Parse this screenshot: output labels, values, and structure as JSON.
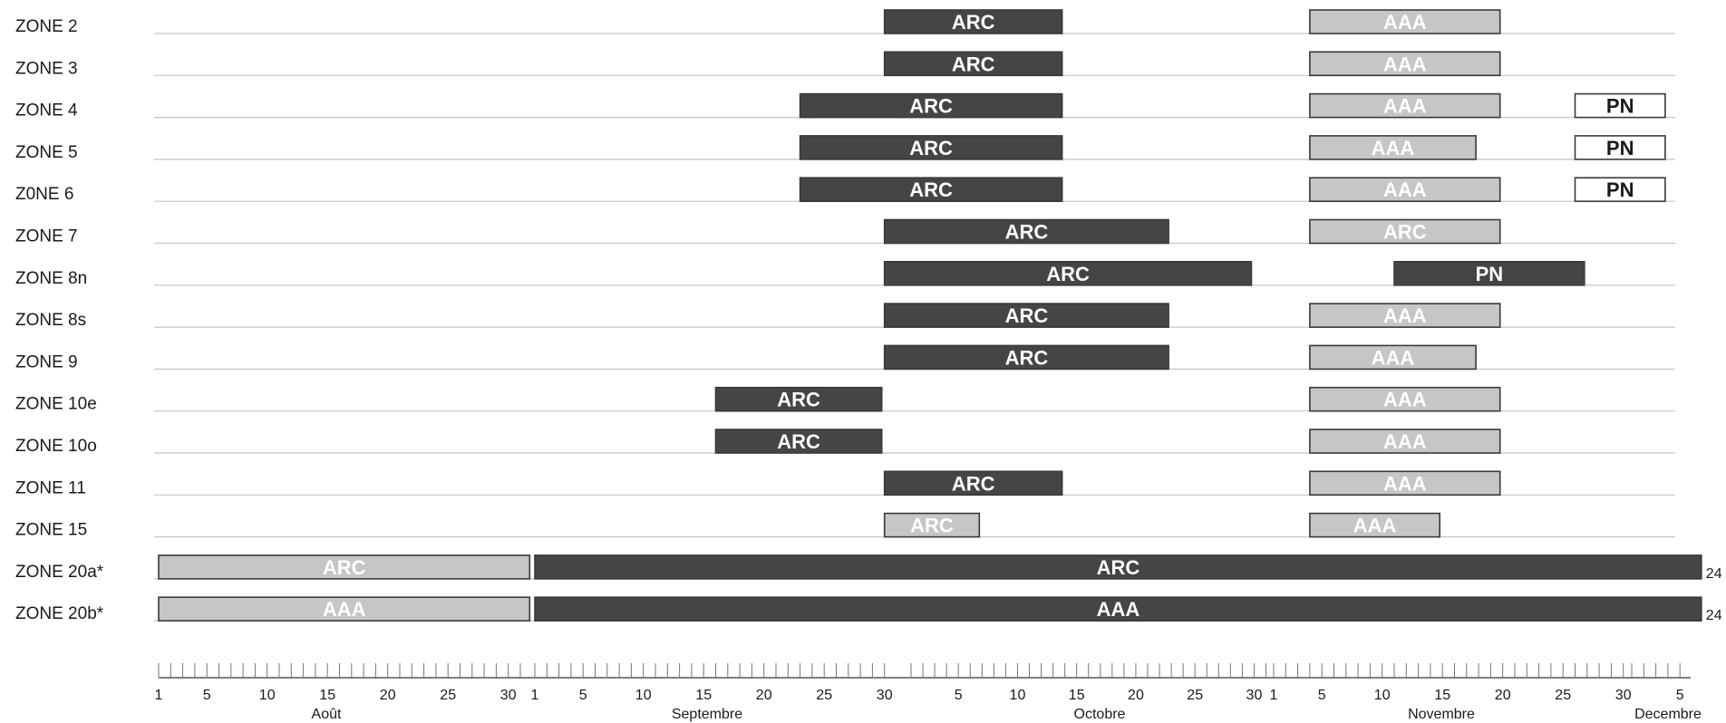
{
  "colors": {
    "dark": "#464446",
    "light": "#c6c6c6",
    "white": "#ffffff",
    "border": "#3a3a3a",
    "row_line": "#c4c4c4",
    "text_dark": "#1a1a1a",
    "text_light": "#ffffff"
  },
  "chart_data": {
    "type": "gantt",
    "rows": [
      "ZONE 2",
      "ZONE 3",
      "ZONE 4",
      "ZONE 5",
      "Z0NE 6",
      "ZONE 7",
      "ZONE 8n",
      "ZONE 8s",
      "ZONE 9",
      "ZONE 10e",
      "ZONE 10o",
      "ZONE 11",
      "ZONE 15",
      "ZONE 20a*",
      "ZONE 20b*"
    ],
    "months": [
      {
        "name": "Août",
        "start": "08-01",
        "ticks": [
          {
            "day": 1,
            "label": "1"
          },
          {
            "day": 5,
            "label": "5"
          },
          {
            "day": 10,
            "label": "10"
          },
          {
            "day": 15,
            "label": "15"
          },
          {
            "day": 20,
            "label": "20"
          },
          {
            "day": 25,
            "label": "25"
          },
          {
            "day": 30,
            "label": "30"
          }
        ]
      },
      {
        "name": "Septembre",
        "start": "09-01",
        "ticks": [
          {
            "day": 1,
            "label": "1"
          },
          {
            "day": 5,
            "label": "5"
          },
          {
            "day": 10,
            "label": "10"
          },
          {
            "day": 15,
            "label": "15"
          },
          {
            "day": 20,
            "label": "20"
          },
          {
            "day": 25,
            "label": "25"
          },
          {
            "day": 30,
            "label": "30"
          }
        ]
      },
      {
        "name": "Octobre",
        "start": "10-01",
        "ticks": [
          {
            "day": 5,
            "label": "5"
          },
          {
            "day": 10,
            "label": "10"
          },
          {
            "day": 15,
            "label": "15"
          },
          {
            "day": 20,
            "label": "20"
          },
          {
            "day": 25,
            "label": "25"
          },
          {
            "day": 30,
            "label": "30"
          }
        ]
      },
      {
        "name": "Novembre",
        "start": "11-01",
        "ticks": [
          {
            "day": 1,
            "label": "1"
          },
          {
            "day": 5,
            "label": "5"
          },
          {
            "day": 10,
            "label": "10"
          },
          {
            "day": 15,
            "label": "15"
          },
          {
            "day": 20,
            "label": "20"
          },
          {
            "day": 25,
            "label": "25"
          },
          {
            "day": 30,
            "label": "30"
          }
        ]
      },
      {
        "name": "Decembre",
        "start": "12-01",
        "ticks": [
          {
            "day": 5,
            "label": "5"
          }
        ]
      }
    ],
    "x_range": [
      "08-01",
      "12-06"
    ],
    "bars": [
      {
        "row": 0,
        "start": "09-30",
        "end": "10-13",
        "label": "ARC",
        "style": "dark"
      },
      {
        "row": 0,
        "start": "11-04",
        "end": "11-19",
        "label": "AAA",
        "style": "light"
      },
      {
        "row": 1,
        "start": "09-30",
        "end": "10-13",
        "label": "ARC",
        "style": "dark"
      },
      {
        "row": 1,
        "start": "11-04",
        "end": "11-19",
        "label": "AAA",
        "style": "light"
      },
      {
        "row": 2,
        "start": "09-23",
        "end": "10-13",
        "label": "ARC",
        "style": "dark"
      },
      {
        "row": 2,
        "start": "11-04",
        "end": "11-19",
        "label": "AAA",
        "style": "light"
      },
      {
        "row": 2,
        "start": "11-26",
        "end": "12-03",
        "label": "PN",
        "style": "white"
      },
      {
        "row": 3,
        "start": "09-23",
        "end": "10-13",
        "label": "ARC",
        "style": "dark"
      },
      {
        "row": 3,
        "start": "11-04",
        "end": "11-17",
        "label": "AAA",
        "style": "light"
      },
      {
        "row": 3,
        "start": "11-26",
        "end": "12-03",
        "label": "PN",
        "style": "white"
      },
      {
        "row": 4,
        "start": "09-23",
        "end": "10-13",
        "label": "ARC",
        "style": "dark"
      },
      {
        "row": 4,
        "start": "11-04",
        "end": "11-19",
        "label": "AAA",
        "style": "light"
      },
      {
        "row": 4,
        "start": "11-26",
        "end": "12-03",
        "label": "PN",
        "style": "white"
      },
      {
        "row": 5,
        "start": "09-30",
        "end": "10-22",
        "label": "ARC",
        "style": "dark"
      },
      {
        "row": 5,
        "start": "11-04",
        "end": "11-19",
        "label": "ARC",
        "style": "light"
      },
      {
        "row": 6,
        "start": "09-30",
        "end": "10-29",
        "label": "ARC",
        "style": "dark"
      },
      {
        "row": 6,
        "start": "11-11",
        "end": "11-26",
        "label": "PN",
        "style": "dark"
      },
      {
        "row": 7,
        "start": "09-30",
        "end": "10-22",
        "label": "ARC",
        "style": "dark"
      },
      {
        "row": 7,
        "start": "11-04",
        "end": "11-19",
        "label": "AAA",
        "style": "light"
      },
      {
        "row": 8,
        "start": "09-30",
        "end": "10-22",
        "label": "ARC",
        "style": "dark"
      },
      {
        "row": 8,
        "start": "11-04",
        "end": "11-17",
        "label": "AAA",
        "style": "light"
      },
      {
        "row": 9,
        "start": "09-16",
        "end": "09-29",
        "label": "ARC",
        "style": "dark"
      },
      {
        "row": 9,
        "start": "11-04",
        "end": "11-19",
        "label": "AAA",
        "style": "light"
      },
      {
        "row": 10,
        "start": "09-16",
        "end": "09-29",
        "label": "ARC",
        "style": "dark"
      },
      {
        "row": 10,
        "start": "11-04",
        "end": "11-19",
        "label": "AAA",
        "style": "light"
      },
      {
        "row": 11,
        "start": "09-30",
        "end": "10-13",
        "label": "ARC",
        "style": "dark"
      },
      {
        "row": 11,
        "start": "11-04",
        "end": "11-19",
        "label": "AAA",
        "style": "light"
      },
      {
        "row": 12,
        "start": "09-30",
        "end": "10-06",
        "label": "ARC",
        "style": "light"
      },
      {
        "row": 12,
        "start": "11-04",
        "end": "11-14",
        "label": "AAA",
        "style": "light"
      },
      {
        "row": 13,
        "start": "08-01",
        "end": "08-31",
        "label": "ARC",
        "style": "light"
      },
      {
        "row": 13,
        "start": "09-01",
        "end": "12-06",
        "label": "ARC",
        "style": "dark",
        "end_note": "24"
      },
      {
        "row": 14,
        "start": "08-01",
        "end": "08-31",
        "label": "AAA",
        "style": "light"
      },
      {
        "row": 14,
        "start": "09-01",
        "end": "12-06",
        "label": "AAA",
        "style": "dark",
        "end_note": "24"
      }
    ]
  }
}
